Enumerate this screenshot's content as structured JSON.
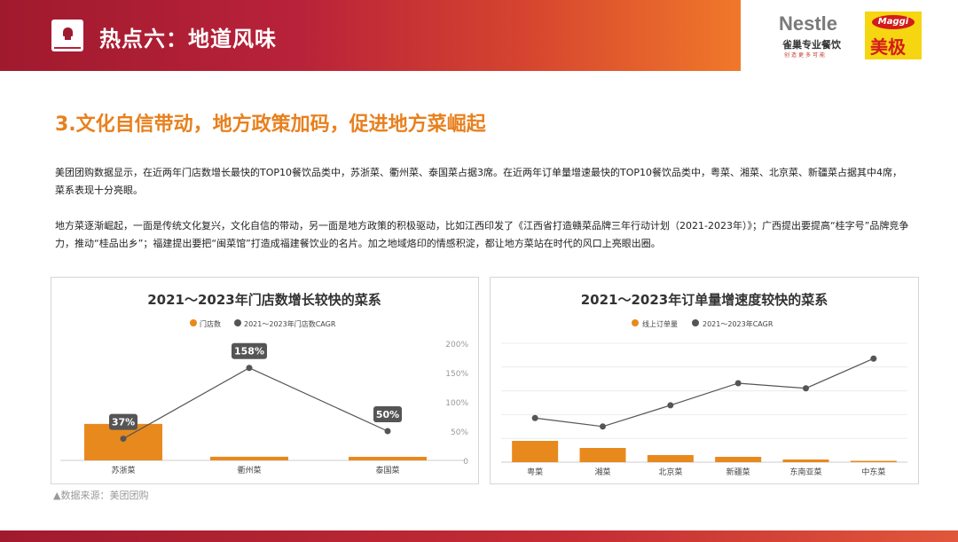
{
  "header": {
    "title": "热点六：地道风味"
  },
  "logos": {
    "nestle_wordmark": "Nestle",
    "nestle_cn": "雀巢专业餐饮",
    "nestle_slogan": "创造更多可能",
    "maggi_wordmark": "Maggi",
    "maggi_cn": "美极"
  },
  "colors": {
    "accent": "#e8801e",
    "brand": "#b8223a",
    "bar": "#e8891e",
    "line": "#555555"
  },
  "section_title": "3.文化自信带动，地方政策加码，促进地方菜崛起",
  "paragraphs": [
    "美团团购数据显示，在近两年门店数增长最快的TOP10餐饮品类中，苏浙菜、衢州菜、泰国菜占据3席。在近两年订单量增速最快的TOP10餐饮品类中，粤菜、湘菜、北京菜、新疆菜占据其中4席，菜系表现十分亮眼。",
    "地方菜逐渐崛起，一面是传统文化复兴，文化自信的带动，另一面是地方政策的积极驱动，比如江西印发了《江西省打造赣菜品牌三年行动计划（2021-2023年）》；广西提出要提高“桂字号”品牌竞争力，推动“桂品出乡”；福建提出要把“闽菜馆”打造成福建餐饮业的名片。加之地域烙印的情感积淀，都让地方菜站在时代的风口上亮眼出圈。"
  ],
  "source": "▲数据来源：美团团购",
  "chart_data": [
    {
      "type": "bar",
      "title": "2021～2023年门店数增长较快的菜系",
      "categories": [
        "苏浙菜",
        "衢州菜",
        "泰国菜"
      ],
      "series": [
        {
          "name": "门店数",
          "kind": "bar",
          "values": [
            12000,
            1200,
            900
          ]
        },
        {
          "name": "2021～2023年门店数CAGR",
          "kind": "line",
          "values": [
            37,
            158,
            50
          ],
          "labels": [
            "37%",
            "158%",
            "50%"
          ]
        }
      ],
      "y2_ticks": [
        "0",
        "50%",
        "100%",
        "150%",
        "200%"
      ],
      "y2lim": [
        0,
        200
      ],
      "legend": "top-center",
      "grid": false
    },
    {
      "type": "bar",
      "title": "2021～2023年订单量增速度较快的菜系",
      "categories": [
        "粤菜",
        "湘菜",
        "北京菜",
        "新疆菜",
        "东南亚菜",
        "中东菜"
      ],
      "series": [
        {
          "name": "线上订单量",
          "kind": "bar",
          "values": [
            24,
            16,
            8,
            6,
            3,
            1
          ]
        },
        {
          "name": "2021～2023年CAGR",
          "kind": "line",
          "values": [
            52,
            42,
            67,
            93,
            87,
            122
          ]
        }
      ],
      "legend": "top-center",
      "grid": true
    }
  ]
}
